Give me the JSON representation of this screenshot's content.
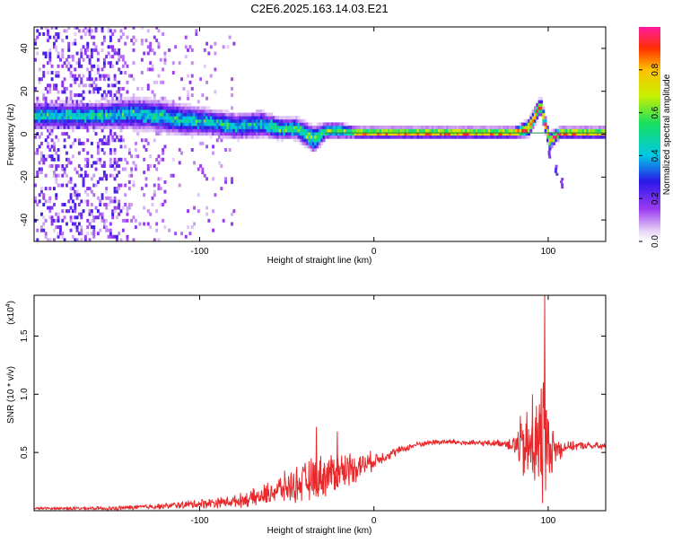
{
  "title": "C2E6.2025.163.14.03.E21",
  "chart_data": [
    {
      "type": "heatmap",
      "xlabel": "Height of straight line (km)",
      "ylabel": "Frequency (Hz)",
      "xlim": [
        -195,
        133
      ],
      "ylim": [
        -50,
        50
      ],
      "xticks": [
        -100,
        0,
        100
      ],
      "yticks": [
        -40,
        -20,
        0,
        20,
        40
      ],
      "colorbar": {
        "label": "Normalized spectral amplitude",
        "range": [
          0,
          1
        ],
        "ticks": [
          0.0,
          0.2,
          0.4,
          0.6,
          0.8
        ]
      },
      "ridge": [
        {
          "x": -155,
          "f": 8,
          "w": 5
        },
        {
          "x": -140,
          "f": 9,
          "w": 6
        },
        {
          "x": -125,
          "f": 8,
          "w": 6
        },
        {
          "x": -110,
          "f": 6,
          "w": 6
        },
        {
          "x": -95,
          "f": 5,
          "w": 5
        },
        {
          "x": -80,
          "f": 3,
          "w": 5
        },
        {
          "x": -65,
          "f": 4,
          "w": 5
        },
        {
          "x": -55,
          "f": 2,
          "w": 4
        },
        {
          "x": -45,
          "f": 2,
          "w": 4
        },
        {
          "x": -35,
          "f": -3,
          "w": 5
        },
        {
          "x": -28,
          "f": 1,
          "w": 3
        },
        {
          "x": -20,
          "f": 1,
          "w": 3
        },
        {
          "x": -10,
          "f": 0,
          "w": 2
        },
        {
          "x": 0,
          "f": 0,
          "w": 2
        },
        {
          "x": 40,
          "f": 0,
          "w": 2
        },
        {
          "x": 80,
          "f": 0,
          "w": 2
        },
        {
          "x": 88,
          "f": 2,
          "w": 3
        },
        {
          "x": 95,
          "f": 13,
          "w": 3
        },
        {
          "x": 100,
          "f": -4,
          "w": 3
        },
        {
          "x": 106,
          "f": 0,
          "w": 2
        },
        {
          "x": 133,
          "f": 0,
          "w": 2
        }
      ],
      "branch": [
        {
          "x": 100,
          "f": -8
        },
        {
          "x": 104,
          "f": -16
        },
        {
          "x": 107,
          "f": -22
        }
      ]
    },
    {
      "type": "line",
      "xlabel": "Height of straight line (km)",
      "ylabel": "SNR (10 * v/v)",
      "y_multiplier": "(x10",
      "y_multiplier_exp": "4",
      "xlim": [
        -195,
        133
      ],
      "ylim": [
        0,
        1.85
      ],
      "xticks": [
        -100,
        0,
        100
      ],
      "yticks": [
        0.5,
        1.0,
        1.5
      ],
      "ytick_labels": [
        "0.5",
        "1.0",
        "1.5"
      ],
      "color": "#e8282a",
      "envelope": {
        "x": [
          -195,
          -150,
          -120,
          -100,
          -80,
          -65,
          -55,
          -45,
          -35,
          -25,
          -15,
          -5,
          5,
          15,
          25,
          35,
          45,
          55,
          65,
          75,
          80,
          84,
          88,
          92,
          96,
          98,
          100,
          104,
          110,
          120,
          133
        ],
        "mean": [
          0.02,
          0.02,
          0.04,
          0.06,
          0.08,
          0.12,
          0.18,
          0.22,
          0.27,
          0.32,
          0.36,
          0.4,
          0.46,
          0.52,
          0.57,
          0.59,
          0.59,
          0.58,
          0.58,
          0.58,
          0.57,
          0.55,
          0.52,
          0.55,
          0.62,
          0.7,
          0.56,
          0.52,
          0.55,
          0.56,
          0.55
        ],
        "amp": [
          0.01,
          0.02,
          0.03,
          0.05,
          0.06,
          0.1,
          0.14,
          0.18,
          0.22,
          0.22,
          0.18,
          0.12,
          0.06,
          0.04,
          0.03,
          0.03,
          0.03,
          0.03,
          0.03,
          0.04,
          0.1,
          0.3,
          0.4,
          0.45,
          0.6,
          1.1,
          0.3,
          0.2,
          0.05,
          0.04,
          0.04
        ]
      },
      "peaks": [
        {
          "x": 98,
          "y": 1.85
        },
        {
          "x": 96,
          "y": 1.05
        },
        {
          "x": 91,
          "y": 1.0
        },
        {
          "x": -33,
          "y": 0.72
        },
        {
          "x": -21,
          "y": 0.68
        }
      ]
    }
  ]
}
